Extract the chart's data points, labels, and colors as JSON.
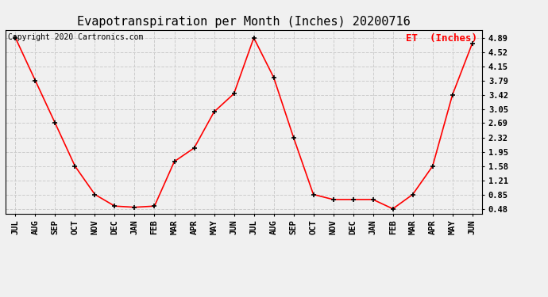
{
  "title": "Evapotranspiration per Month (Inches) 20200716",
  "copyright_text": "Copyright 2020 Cartronics.com",
  "legend_label": "ET  (Inches)",
  "months": [
    "JUL",
    "AUG",
    "SEP",
    "OCT",
    "NOV",
    "DEC",
    "JAN",
    "FEB",
    "MAR",
    "APR",
    "MAY",
    "JUN",
    "JUL",
    "AUG",
    "SEP",
    "OCT",
    "NOV",
    "DEC",
    "JAN",
    "FEB",
    "MAR",
    "APR",
    "MAY",
    "JUN"
  ],
  "values": [
    4.89,
    3.79,
    2.69,
    1.58,
    0.85,
    0.55,
    0.52,
    0.55,
    1.7,
    2.05,
    2.98,
    3.45,
    4.89,
    3.87,
    2.32,
    0.85,
    0.72,
    0.72,
    0.72,
    0.48,
    0.85,
    1.58,
    3.42,
    4.75
  ],
  "yticks": [
    0.48,
    0.85,
    1.21,
    1.58,
    1.95,
    2.32,
    2.69,
    3.05,
    3.42,
    3.79,
    4.15,
    4.52,
    4.89
  ],
  "line_color": "red",
  "marker_color": "black",
  "grid_color": "#cccccc",
  "background_color": "#f0f0f0",
  "title_fontsize": 11,
  "copyright_fontsize": 7,
  "legend_fontsize": 9,
  "tick_fontsize": 7.5
}
